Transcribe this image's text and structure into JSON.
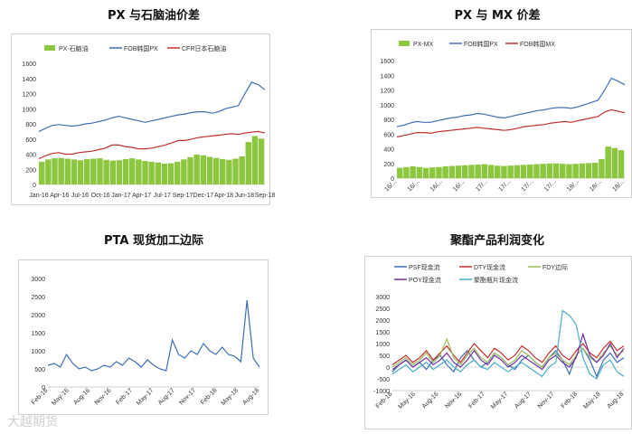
{
  "chart_data": [
    {
      "type": "line",
      "title": "PX 与石脑油价差",
      "ylim": [
        0,
        1600
      ],
      "yticks": [
        0,
        200,
        400,
        600,
        800,
        1000,
        1200,
        1400,
        1600
      ],
      "x_tick_labels": [
        "Jan-16",
        "Apr-16",
        "Jul-16",
        "Oct-16",
        "Jan-17",
        "Apr-17",
        "Jul-17",
        "Sep-17",
        "Dec-17",
        "Apr-18",
        "Jun-18",
        "Sep-18"
      ],
      "x_tick_rotate": false,
      "legend_position": "top",
      "series": [
        {
          "name": "PX-石脑油",
          "kind": "bar",
          "color": "#8dc63f",
          "values": [
            300,
            330,
            345,
            350,
            340,
            330,
            320,
            335,
            340,
            345,
            325,
            315,
            320,
            335,
            345,
            330,
            310,
            300,
            290,
            275,
            280,
            300,
            330,
            360,
            395,
            385,
            365,
            350,
            335,
            325,
            340,
            370,
            560,
            640,
            605
          ]
        },
        {
          "name": "FOB韩国PX",
          "kind": "line",
          "color": "#3d6eb4",
          "values": [
            700,
            740,
            780,
            790,
            780,
            770,
            780,
            800,
            810,
            830,
            850,
            880,
            900,
            880,
            860,
            840,
            820,
            840,
            860,
            880,
            900,
            920,
            930,
            950,
            960,
            960,
            940,
            960,
            1000,
            1020,
            1040,
            1200,
            1350,
            1320,
            1250
          ]
        },
        {
          "name": "CFR日本石脑油",
          "kind": "line",
          "color": "#c0302f",
          "values": [
            340,
            380,
            410,
            420,
            400,
            400,
            420,
            430,
            440,
            460,
            480,
            520,
            520,
            500,
            490,
            470,
            470,
            480,
            500,
            520,
            550,
            580,
            580,
            600,
            620,
            630,
            640,
            650,
            660,
            670,
            660,
            680,
            690,
            700,
            680
          ]
        }
      ]
    },
    {
      "type": "line",
      "title": "PX 与 MX 价差",
      "ylim": [
        0,
        1600
      ],
      "yticks": [
        0,
        200,
        400,
        600,
        800,
        1000,
        1200,
        1400,
        1600
      ],
      "x_tick_labels": [
        "16/...",
        "16/...",
        "16/...",
        "16/...",
        "17/...",
        "17/...",
        "17/...",
        "17/...",
        "18/...",
        "18/...",
        "18/..."
      ],
      "x_tick_rotate": true,
      "legend_position": "top",
      "series": [
        {
          "name": "PX-MX",
          "kind": "bar",
          "color": "#8dc63f",
          "values": [
            140,
            150,
            160,
            150,
            140,
            145,
            150,
            160,
            165,
            170,
            175,
            180,
            185,
            190,
            180,
            170,
            165,
            170,
            175,
            180,
            185,
            190,
            195,
            200,
            200,
            195,
            190,
            195,
            200,
            205,
            210,
            260,
            430,
            410,
            380
          ]
        },
        {
          "name": "FOB韩国PX",
          "kind": "line",
          "color": "#3d6eb4",
          "values": [
            700,
            720,
            750,
            770,
            760,
            760,
            780,
            800,
            820,
            830,
            850,
            860,
            880,
            870,
            850,
            830,
            820,
            840,
            860,
            880,
            900,
            920,
            930,
            950,
            960,
            960,
            950,
            970,
            1000,
            1030,
            1060,
            1200,
            1360,
            1320,
            1270
          ]
        },
        {
          "name": "FOB韩国MX",
          "kind": "line",
          "color": "#c0302f",
          "values": [
            560,
            580,
            600,
            620,
            620,
            610,
            630,
            640,
            650,
            660,
            670,
            680,
            690,
            680,
            670,
            660,
            650,
            660,
            680,
            700,
            710,
            720,
            730,
            750,
            760,
            770,
            760,
            780,
            800,
            820,
            840,
            900,
            930,
            910,
            890
          ]
        }
      ]
    },
    {
      "type": "line",
      "title": "PTA 现货加工边际",
      "ylim": [
        0,
        3000
      ],
      "yticks": [
        0,
        500,
        1000,
        1500,
        2000,
        2500,
        3000
      ],
      "x_tick_labels": [
        "Feb-16",
        "May-16",
        "Aug-16",
        "Nov-16",
        "Feb-17",
        "May-17",
        "Aug-17",
        "Nov-17",
        "Feb-18",
        "May-18",
        "Aug-18"
      ],
      "x_tick_rotate": true,
      "legend_position": "none",
      "series": [
        {
          "name": "",
          "kind": "line",
          "color": "#3d6eb4",
          "values": [
            600,
            650,
            550,
            900,
            650,
            500,
            550,
            450,
            500,
            600,
            550,
            700,
            600,
            800,
            700,
            550,
            750,
            600,
            500,
            450,
            1300,
            900,
            800,
            1000,
            900,
            1200,
            1000,
            900,
            1100,
            900,
            850,
            700,
            2400,
            800,
            550
          ]
        }
      ]
    },
    {
      "type": "line",
      "title": "聚酯产品利润变化",
      "ylim": [
        -1000,
        3000
      ],
      "yticks": [
        -1000,
        -500,
        0,
        500,
        1000,
        1500,
        2000,
        2500,
        3000
      ],
      "x_tick_labels": [
        "Feb-16",
        "May-16",
        "Aug-16",
        "Nov-16",
        "Feb-17",
        "May-17",
        "Aug-17",
        "Nov-17",
        "Feb-18",
        "May-18",
        "Aug-18"
      ],
      "x_tick_rotate": true,
      "legend_position": "top",
      "series": [
        {
          "name": "PSF现金流",
          "kind": "line",
          "color": "#3d6eb4",
          "values": [
            -200,
            100,
            300,
            0,
            200,
            -100,
            300,
            500,
            100,
            -200,
            400,
            700,
            300,
            0,
            200,
            600,
            400,
            100,
            -100,
            300,
            500,
            200,
            0,
            400,
            700,
            300,
            -300,
            500,
            800,
            300,
            -400,
            300,
            600,
            200,
            400
          ]
        },
        {
          "name": "DTY现金流",
          "kind": "line",
          "color": "#c0302f",
          "values": [
            100,
            300,
            500,
            200,
            400,
            700,
            300,
            600,
            900,
            500,
            200,
            600,
            1000,
            700,
            400,
            800,
            600,
            300,
            500,
            900,
            700,
            400,
            200,
            600,
            900,
            500,
            300,
            700,
            1000,
            600,
            400,
            800,
            1100,
            700,
            900
          ]
        },
        {
          "name": "FDY边际",
          "kind": "line",
          "color": "#9bbb59",
          "values": [
            0,
            200,
            400,
            100,
            300,
            600,
            200,
            500,
            1200,
            400,
            100,
            500,
            800,
            400,
            200,
            600,
            400,
            100,
            300,
            700,
            500,
            200,
            0,
            400,
            600,
            300,
            100,
            500,
            800,
            400,
            200,
            600,
            900,
            500,
            700
          ]
        },
        {
          "name": "POY现金流",
          "kind": "line",
          "color": "#7030a0",
          "values": [
            -100,
            100,
            300,
            0,
            200,
            400,
            100,
            300,
            600,
            200,
            0,
            300,
            700,
            300,
            100,
            500,
            300,
            0,
            200,
            500,
            300,
            100,
            -100,
            300,
            500,
            200,
            0,
            400,
            1400,
            500,
            200,
            500,
            1000,
            400,
            800
          ]
        },
        {
          "name": "聚酯瓶片现金流",
          "kind": "line",
          "color": "#4bacc6",
          "values": [
            -300,
            -100,
            100,
            -200,
            0,
            200,
            -100,
            100,
            300,
            0,
            -200,
            100,
            300,
            0,
            -100,
            200,
            0,
            -200,
            0,
            200,
            0,
            -200,
            -400,
            0,
            200,
            2400,
            2200,
            1800,
            400,
            -300,
            -500,
            100,
            300,
            -200,
            -400
          ]
        }
      ]
    }
  ],
  "watermark": "大越期货"
}
